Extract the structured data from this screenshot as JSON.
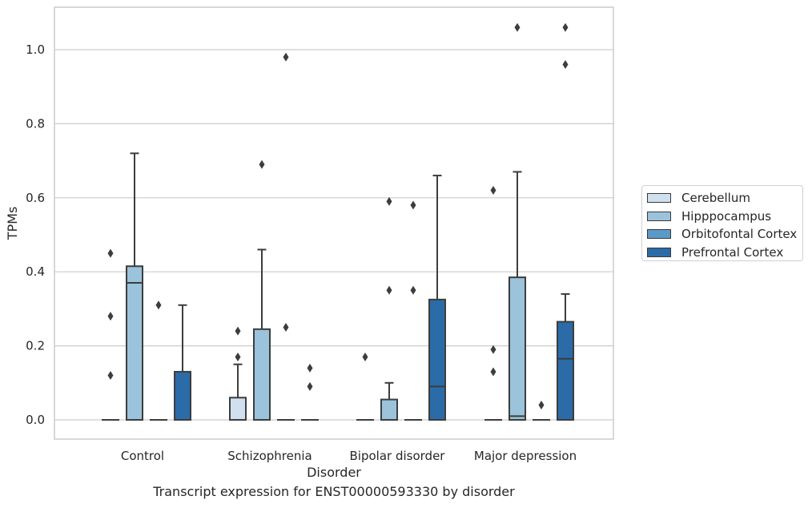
{
  "chart_data": {
    "type": "box",
    "caption": "Transcript expression for ENST00000593330 by disorder",
    "xlabel": "Disorder",
    "ylabel": "TPMs",
    "ylim": [
      -0.05,
      1.12
    ],
    "yticks": [
      0.0,
      0.2,
      0.4,
      0.6,
      0.8,
      1.0
    ],
    "ytick_labels": [
      "0.0",
      "0.2",
      "0.4",
      "0.6",
      "0.8",
      "1.0"
    ],
    "grid": "horizontal",
    "legend_position": "right",
    "categories": [
      "Control",
      "Schizophrenia",
      "Bipolar disorder",
      "Major depression"
    ],
    "series": [
      {
        "name": "Cerebellum",
        "color": "#d0e0f0",
        "boxes": [
          {
            "min": 0.0,
            "q1": 0.0,
            "median": 0.0,
            "q3": 0.0,
            "max": 0.0,
            "outliers": [
              0.12,
              0.28,
              0.45
            ]
          },
          {
            "min": 0.0,
            "q1": 0.0,
            "median": 0.0,
            "q3": 0.06,
            "max": 0.15,
            "outliers": [
              0.17,
              0.24
            ]
          },
          {
            "min": 0.0,
            "q1": 0.0,
            "median": 0.0,
            "q3": 0.0,
            "max": 0.0,
            "outliers": [
              0.17
            ]
          },
          {
            "min": 0.0,
            "q1": 0.0,
            "median": 0.0,
            "q3": 0.0,
            "max": 0.0,
            "outliers": [
              0.13,
              0.19,
              0.62
            ]
          }
        ]
      },
      {
        "name": "Hipppocampus",
        "color": "#9bc3db",
        "boxes": [
          {
            "min": 0.0,
            "q1": 0.0,
            "median": 0.37,
            "q3": 0.415,
            "max": 0.72,
            "outliers": []
          },
          {
            "min": 0.0,
            "q1": 0.0,
            "median": 0.0,
            "q3": 0.245,
            "max": 0.46,
            "outliers": [
              0.69
            ]
          },
          {
            "min": 0.0,
            "q1": 0.0,
            "median": 0.0,
            "q3": 0.055,
            "max": 0.1,
            "outliers": [
              0.35,
              0.59
            ]
          },
          {
            "min": 0.0,
            "q1": 0.0,
            "median": 0.01,
            "q3": 0.385,
            "max": 0.67,
            "outliers": [
              1.06
            ]
          }
        ]
      },
      {
        "name": "Orbitofontal Cortex",
        "color": "#5a9ac8",
        "boxes": [
          {
            "min": 0.0,
            "q1": 0.0,
            "median": 0.0,
            "q3": 0.0,
            "max": 0.0,
            "outliers": [
              0.31
            ]
          },
          {
            "min": 0.0,
            "q1": 0.0,
            "median": 0.0,
            "q3": 0.0,
            "max": 0.0,
            "outliers": [
              0.25,
              0.98
            ]
          },
          {
            "min": 0.0,
            "q1": 0.0,
            "median": 0.0,
            "q3": 0.0,
            "max": 0.0,
            "outliers": [
              0.35,
              0.58
            ]
          },
          {
            "min": 0.0,
            "q1": 0.0,
            "median": 0.0,
            "q3": 0.0,
            "max": 0.0,
            "outliers": [
              0.04
            ]
          }
        ]
      },
      {
        "name": "Prefrontal Cortex",
        "color": "#2b6ba8",
        "boxes": [
          {
            "min": 0.0,
            "q1": 0.0,
            "median": 0.0,
            "q3": 0.13,
            "max": 0.31,
            "outliers": []
          },
          {
            "min": 0.0,
            "q1": 0.0,
            "median": 0.0,
            "q3": 0.0,
            "max": 0.0,
            "outliers": [
              0.09,
              0.14
            ]
          },
          {
            "min": 0.0,
            "q1": 0.0,
            "median": 0.09,
            "q3": 0.325,
            "max": 0.66,
            "outliers": []
          },
          {
            "min": 0.0,
            "q1": 0.0,
            "median": 0.165,
            "q3": 0.265,
            "max": 0.34,
            "outliers": [
              0.96,
              1.06
            ]
          }
        ]
      }
    ]
  }
}
